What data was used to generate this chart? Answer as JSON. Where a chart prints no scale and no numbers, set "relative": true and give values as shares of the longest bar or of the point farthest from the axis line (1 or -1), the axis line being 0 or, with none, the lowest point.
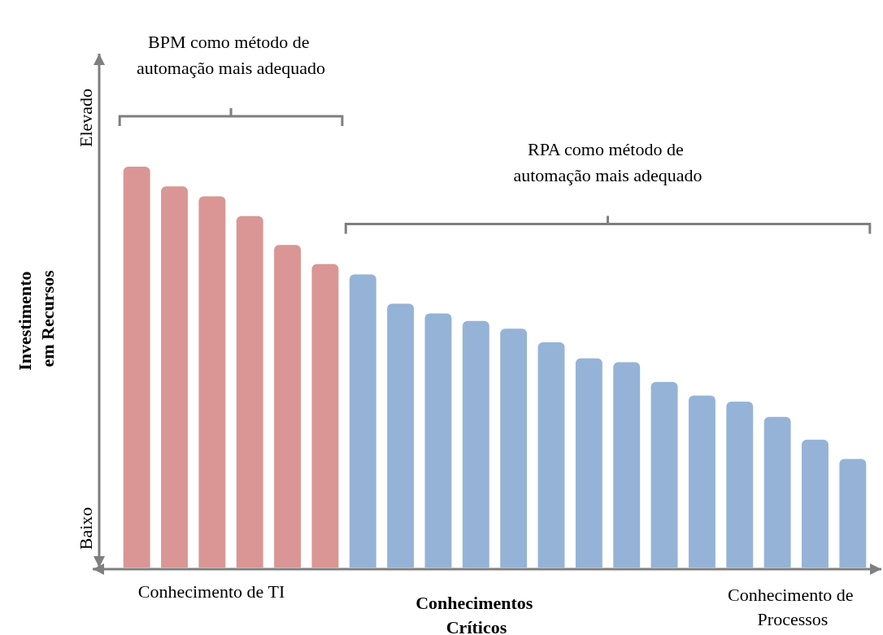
{
  "chart_data": {
    "type": "bar",
    "relative": true,
    "stacked": true,
    "xlabel": "Conhecimentos Críticos",
    "ylabel": "Investimento em Recursos",
    "categories": [
      null,
      null,
      null,
      null,
      null,
      null,
      null,
      null,
      null,
      null,
      null,
      null,
      null,
      null,
      null,
      null,
      null,
      null,
      null,
      null
    ],
    "series": [
      {
        "color": "#d99694",
        "values": [
          1,
          0.951,
          0.926,
          0.877,
          0.805,
          0.757,
          null,
          null,
          null,
          null,
          null,
          null,
          null,
          null,
          null,
          null,
          null,
          null,
          null,
          null
        ]
      },
      {
        "color": "#95b3d7",
        "values": [
          null,
          null,
          null,
          null,
          null,
          null,
          0.731,
          0.658,
          0.634,
          0.615,
          0.596,
          0.562,
          0.522,
          0.512,
          0.463,
          0.429,
          0.414,
          0.376,
          0.319,
          0.271
        ]
      }
    ],
    "annotations": [
      "BPM como método de automação mais adequado",
      "RPA como método de automação mais adequado",
      "Elevado",
      "Baixo",
      "Conhecimento de TI",
      "Conhecimento de Processos"
    ]
  }
}
